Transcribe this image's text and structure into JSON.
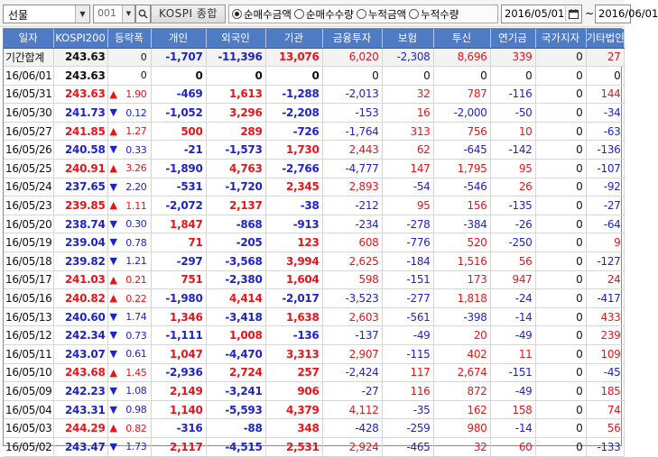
{
  "toolbar": {
    "market_select": "선물",
    "code": "001",
    "index_name": "KOSPI 종합",
    "radio_options": [
      "순매수금액",
      "순매수수량",
      "누적금액",
      "누적수량"
    ],
    "radio_selected": 0,
    "start_date": "2016/05/01",
    "tilde": "~",
    "end_date": "2016/06/01"
  },
  "table": {
    "columns": [
      "일자",
      "KOSPI200",
      "등락폭",
      "개인",
      "외국인",
      "기관",
      "금융투자",
      "보험",
      "투신",
      "연기금",
      "국가지자",
      "기타법인"
    ],
    "rows": [
      [
        "기간합계",
        "243.63",
        "0",
        "-1,707",
        "-11,396",
        "13,076",
        "6,020",
        "-2,308",
        "8,696",
        "339",
        "0",
        "27"
      ],
      [
        "16/06/01",
        "243.63",
        "0",
        "0",
        "0",
        "0",
        "0",
        "0",
        "0",
        "0",
        "0",
        "0"
      ],
      [
        "16/05/31",
        "243.63",
        "▲ 1.90",
        "-469",
        "1,613",
        "-1,288",
        "-2,013",
        "32",
        "787",
        "-116",
        "0",
        "144"
      ],
      [
        "16/05/30",
        "241.73",
        "▼ 0.12",
        "-1,052",
        "3,296",
        "-2,208",
        "-153",
        "16",
        "-2,000",
        "-50",
        "0",
        "-34"
      ],
      [
        "16/05/27",
        "241.85",
        "▲ 1.27",
        "500",
        "289",
        "-726",
        "-1,764",
        "313",
        "756",
        "10",
        "0",
        "-63"
      ],
      [
        "16/05/26",
        "240.58",
        "▼ 0.33",
        "-21",
        "-1,573",
        "1,730",
        "2,443",
        "62",
        "-645",
        "-142",
        "0",
        "-136"
      ],
      [
        "16/05/25",
        "240.91",
        "▲ 3.26",
        "-1,890",
        "4,763",
        "-2,766",
        "-4,777",
        "147",
        "1,795",
        "95",
        "0",
        "-107"
      ],
      [
        "16/05/24",
        "237.65",
        "▼ 2.20",
        "-531",
        "-1,720",
        "2,345",
        "2,893",
        "-54",
        "-546",
        "26",
        "0",
        "-92"
      ],
      [
        "16/05/23",
        "239.85",
        "▲ 1.11",
        "-2,072",
        "2,137",
        "-38",
        "-212",
        "95",
        "156",
        "-135",
        "0",
        "-27"
      ],
      [
        "16/05/20",
        "238.74",
        "▼ 0.30",
        "1,847",
        "-868",
        "-913",
        "-234",
        "-278",
        "-384",
        "-26",
        "0",
        "-64"
      ],
      [
        "16/05/19",
        "239.04",
        "▼ 0.78",
        "71",
        "-205",
        "123",
        "608",
        "-776",
        "520",
        "-250",
        "0",
        "9"
      ],
      [
        "16/05/18",
        "239.82",
        "▼ 1.21",
        "-297",
        "-3,568",
        "3,994",
        "2,625",
        "-184",
        "1,516",
        "56",
        "0",
        "-127"
      ],
      [
        "16/05/17",
        "241.03",
        "▲ 0.21",
        "751",
        "-2,380",
        "1,604",
        "598",
        "-151",
        "173",
        "947",
        "0",
        "24"
      ],
      [
        "16/05/16",
        "240.82",
        "▲ 0.22",
        "-1,980",
        "4,414",
        "-2,017",
        "-3,523",
        "-277",
        "1,818",
        "-24",
        "0",
        "-417"
      ],
      [
        "16/05/13",
        "240.60",
        "▼ 1.74",
        "1,346",
        "-3,418",
        "1,638",
        "2,603",
        "-561",
        "-398",
        "-14",
        "0",
        "433"
      ],
      [
        "16/05/12",
        "242.34",
        "▼ 0.73",
        "-1,111",
        "1,008",
        "-136",
        "-137",
        "-49",
        "20",
        "-49",
        "0",
        "239"
      ],
      [
        "16/05/11",
        "243.07",
        "▼ 0.61",
        "1,047",
        "-4,470",
        "3,313",
        "2,907",
        "-115",
        "402",
        "11",
        "0",
        "109"
      ],
      [
        "16/05/10",
        "243.68",
        "▲ 1.45",
        "-2,936",
        "2,724",
        "257",
        "-2,424",
        "117",
        "2,674",
        "-151",
        "0",
        "-45"
      ],
      [
        "16/05/09",
        "242.23",
        "▼ 1.08",
        "2,149",
        "-3,241",
        "906",
        "-27",
        "116",
        "872",
        "-49",
        "0",
        "185"
      ],
      [
        "16/05/04",
        "243.31",
        "▼ 0.98",
        "1,140",
        "-5,593",
        "4,379",
        "4,112",
        "-35",
        "162",
        "158",
        "0",
        "74"
      ],
      [
        "16/05/03",
        "244.29",
        "▲ 0.82",
        "-316",
        "-88",
        "348",
        "-428",
        "-259",
        "980",
        "-14",
        "0",
        "56"
      ],
      [
        "16/05/02",
        "243.47",
        "▼ 1.73",
        "2,117",
        "-4,515",
        "2,531",
        "2,924",
        "-465",
        "32",
        "60",
        "0",
        "-133"
      ]
    ]
  },
  "colors": {
    "header_bg": "#4f7ac4",
    "up": "#e8141a",
    "down": "#1f24c8"
  },
  "icons": {
    "combo_arrow": "triangle-down-icon",
    "search": "magnifier-icon",
    "calendar": "calendar-icon"
  }
}
